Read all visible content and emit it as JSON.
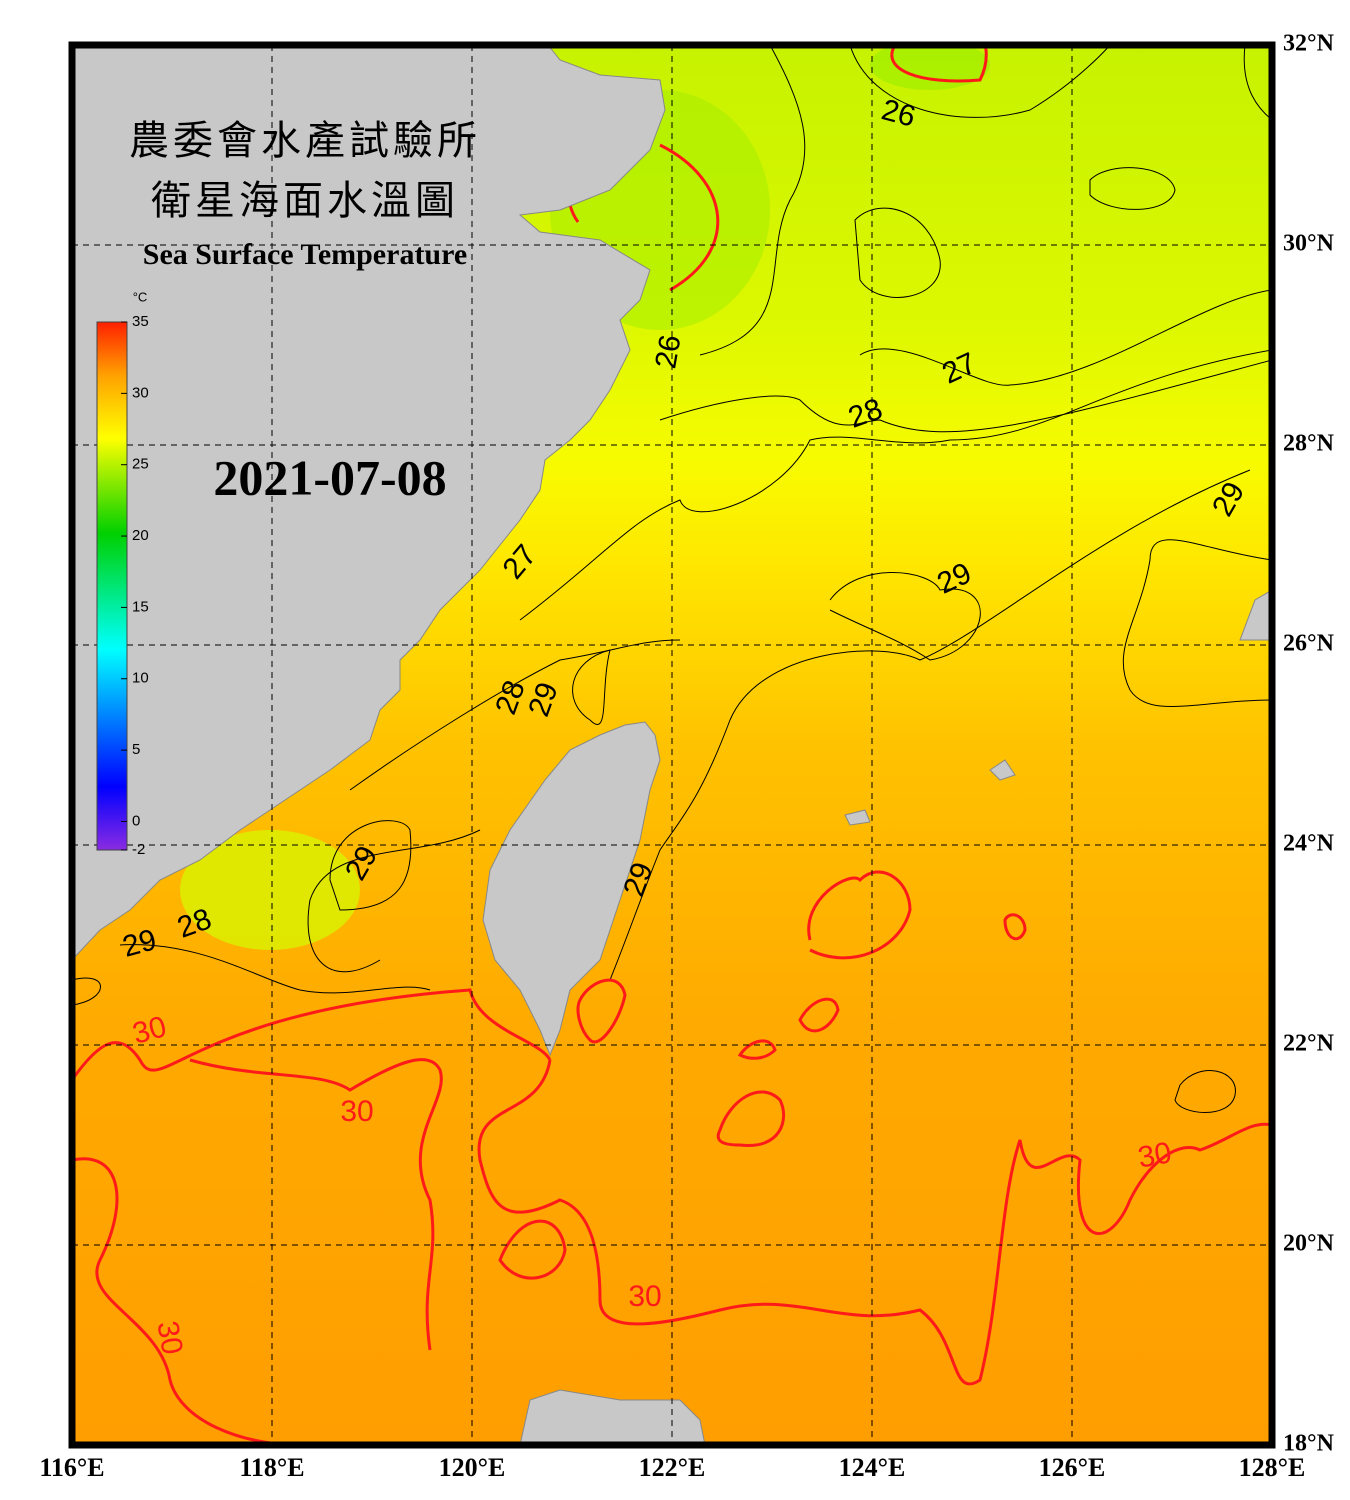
{
  "map": {
    "title_lines": [
      "農委會水產試驗所",
      "衛星海面水溫圖"
    ],
    "subtitle": "Sea Surface Temperature",
    "date": "2021-07-08",
    "lonlim": [
      116,
      128
    ],
    "latlim": [
      18,
      32
    ],
    "lon_ticks": [
      {
        "value": 116,
        "label": "116°E"
      },
      {
        "value": 118,
        "label": "118°E"
      },
      {
        "value": 120,
        "label": "120°E"
      },
      {
        "value": 122,
        "label": "122°E"
      },
      {
        "value": 124,
        "label": "124°E"
      },
      {
        "value": 126,
        "label": "126°E"
      },
      {
        "value": 128,
        "label": "128°E"
      }
    ],
    "lat_ticks": [
      {
        "value": 32,
        "label": "32°N"
      },
      {
        "value": 30,
        "label": "30°N"
      },
      {
        "value": 28,
        "label": "28°N"
      },
      {
        "value": 26,
        "label": "26°N"
      },
      {
        "value": 24,
        "label": "24°N"
      },
      {
        "value": 22,
        "label": "22°N"
      },
      {
        "value": 20,
        "label": "20°N"
      },
      {
        "value": 18,
        "label": "18°N"
      }
    ],
    "colorbar": {
      "unit": "°C",
      "range": [
        -2,
        35
      ],
      "ticks": [
        35,
        30,
        25,
        20,
        15,
        10,
        5,
        0,
        -2
      ]
    },
    "contour_labels": [
      26,
      26,
      27,
      28,
      27,
      28,
      29,
      29,
      29,
      29,
      28,
      29,
      29,
      30,
      30,
      30,
      30,
      30
    ]
  }
}
